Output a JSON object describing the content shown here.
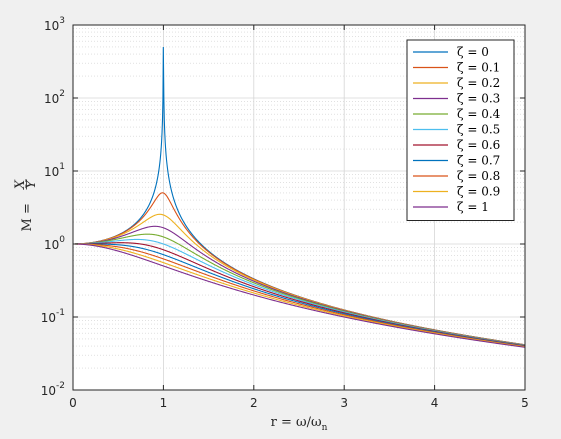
{
  "chart_data": {
    "type": "line",
    "title": "",
    "xlabel": "r = ω/ω",
    "xlabel_sub": "n",
    "ylabel": "M = ",
    "ylabel_frac_num": "X",
    "ylabel_frac_den": "Y",
    "x_scale": "linear",
    "y_scale": "log",
    "xlim": [
      0,
      5
    ],
    "ylim": [
      0.01,
      1000
    ],
    "x_ticks": [
      "0",
      "1",
      "2",
      "3",
      "4",
      "5"
    ],
    "y_ticks": [
      {
        "base": "10",
        "exp": "-2"
      },
      {
        "base": "10",
        "exp": "-1"
      },
      {
        "base": "10",
        "exp": "0"
      },
      {
        "base": "10",
        "exp": "1"
      },
      {
        "base": "10",
        "exp": "2"
      },
      {
        "base": "10",
        "exp": "3"
      }
    ],
    "grid": true,
    "minor_grid": true,
    "legend_position": "top-right",
    "formula": "M = 1 / sqrt((1 - r^2)^2 + (2*zeta*r)^2)",
    "r_range": [
      0,
      5
    ],
    "series": [
      {
        "name": "ζ = 0",
        "zeta": 0.0,
        "color": "#0072bd"
      },
      {
        "name": "ζ = 0.1",
        "zeta": 0.1,
        "color": "#d95319"
      },
      {
        "name": "ζ = 0.2",
        "zeta": 0.2,
        "color": "#edb120"
      },
      {
        "name": "ζ = 0.3",
        "zeta": 0.3,
        "color": "#7e2f8e"
      },
      {
        "name": "ζ = 0.4",
        "zeta": 0.4,
        "color": "#77ac30"
      },
      {
        "name": "ζ = 0.5",
        "zeta": 0.5,
        "color": "#4dbeee"
      },
      {
        "name": "ζ = 0.6",
        "zeta": 0.6,
        "color": "#a2142f"
      },
      {
        "name": "ζ = 0.7",
        "zeta": 0.7,
        "color": "#0072bd"
      },
      {
        "name": "ζ = 0.8",
        "zeta": 0.8,
        "color": "#d95319"
      },
      {
        "name": "ζ = 0.9",
        "zeta": 0.9,
        "color": "#edb120"
      },
      {
        "name": "ζ = 1",
        "zeta": 1.0,
        "color": "#7e2f8e"
      }
    ]
  }
}
